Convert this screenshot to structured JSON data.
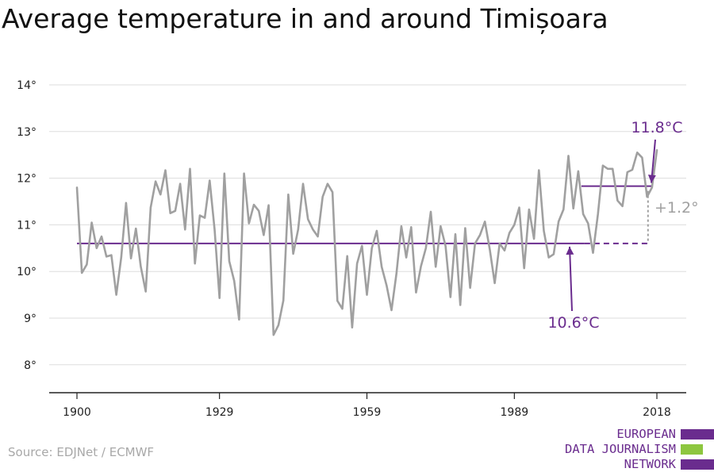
{
  "title": "Average temperature in and around Timișoara",
  "source": "Source: EDJNet / ECMWF",
  "logo": {
    "lines": [
      "EUROPEAN",
      "DATA JOURNALISM",
      "NETWORK"
    ],
    "colors": {
      "purple": "#6a2c8e",
      "green": "#8dc63f"
    }
  },
  "colors": {
    "series": "#a0a0a0",
    "baseline": "#6a2c8e",
    "recent": "#6a2c8e",
    "annotation_purple": "#6a2c8e",
    "annotation_grey": "#a0a0a0",
    "grid": "#dddddd",
    "axis": "#222222"
  },
  "chart_data": {
    "type": "line",
    "title": "Average temperature in and around Timișoara",
    "xlabel": "",
    "ylabel": "",
    "xlim": [
      1900,
      2018
    ],
    "ylim": [
      7.8,
      14
    ],
    "x_ticks": [
      1900,
      1929,
      1959,
      1989,
      2018
    ],
    "x_tick_labels": [
      "1900",
      "1929",
      "1959",
      "1989",
      "2018"
    ],
    "y_ticks": [
      8,
      9,
      10,
      11,
      12,
      13,
      14
    ],
    "y_tick_labels": [
      "8°",
      "9°",
      "10°",
      "11°",
      "12°",
      "13°",
      "14°"
    ],
    "grid": "horizontal",
    "series": [
      {
        "x": [
          1900,
          1901,
          1902,
          1903,
          1904,
          1905,
          1906,
          1907,
          1908,
          1909,
          1910,
          1911,
          1912,
          1913,
          1914,
          1915,
          1916,
          1917,
          1918,
          1919,
          1920,
          1921,
          1922,
          1923,
          1924,
          1925,
          1926,
          1927,
          1928,
          1929,
          1930,
          1931,
          1932,
          1933,
          1934,
          1935,
          1936,
          1937,
          1938,
          1939,
          1940,
          1941,
          1942,
          1943,
          1944,
          1945,
          1946,
          1947,
          1948,
          1949,
          1950,
          1951,
          1952,
          1953,
          1954,
          1955,
          1956,
          1957,
          1958,
          1959,
          1960,
          1961,
          1962,
          1963,
          1964,
          1965,
          1966,
          1967,
          1968,
          1969,
          1970,
          1971,
          1972,
          1973,
          1974,
          1975,
          1976,
          1977,
          1978,
          1979,
          1980,
          1981,
          1982,
          1983,
          1984,
          1985,
          1986,
          1987,
          1988,
          1989,
          1990,
          1991,
          1992,
          1993,
          1994,
          1995,
          1996,
          1997,
          1998,
          1999,
          2000,
          2001,
          2002,
          2003,
          2004,
          2005,
          2006,
          2007,
          2008,
          2009,
          2010,
          2011,
          2012,
          2013,
          2014,
          2015,
          2016,
          2017,
          2018
        ],
        "values": [
          11.8,
          9.97,
          10.15,
          11.05,
          10.5,
          10.75,
          10.32,
          10.35,
          9.5,
          10.3,
          11.47,
          10.28,
          10.92,
          10.1,
          9.57,
          11.37,
          11.93,
          11.65,
          12.17,
          11.25,
          11.3,
          11.88,
          10.9,
          12.2,
          10.17,
          11.2,
          11.15,
          11.95,
          10.9,
          9.43,
          12.1,
          10.22,
          9.8,
          8.97,
          12.1,
          11.03,
          11.43,
          11.3,
          10.78,
          11.42,
          8.64,
          8.85,
          9.38,
          11.65,
          10.38,
          10.9,
          11.88,
          11.12,
          10.9,
          10.75,
          11.6,
          11.88,
          11.7,
          9.37,
          9.2,
          10.33,
          8.8,
          10.17,
          10.55,
          9.5,
          10.5,
          10.87,
          10.1,
          9.7,
          9.17,
          9.95,
          10.97,
          10.3,
          10.95,
          9.55,
          10.11,
          10.5,
          11.28,
          10.1,
          10.97,
          10.55,
          9.45,
          10.8,
          9.28,
          10.93,
          9.65,
          10.6,
          10.78,
          11.07,
          10.47,
          9.75,
          10.6,
          10.45,
          10.83,
          11.0,
          11.37,
          10.07,
          11.33,
          10.7,
          12.17,
          10.87,
          10.3,
          10.37,
          11.07,
          11.33,
          12.48,
          11.35,
          12.15,
          11.23,
          11.03,
          10.4,
          11.23,
          12.27,
          12.2,
          12.2,
          11.52,
          11.4,
          12.13,
          12.18,
          12.55,
          12.44,
          11.6,
          11.8,
          12.6
        ],
        "color": "#a0a0a0"
      }
    ],
    "reference_lines": [
      {
        "value": 10.6,
        "x_from": 1900,
        "x_to": 2017,
        "style": "solid-then-dashed",
        "dash_from": 2002
      },
      {
        "value": 11.83,
        "x_from": 2002,
        "x_to": 2017,
        "style": "solid"
      }
    ],
    "annotations": [
      {
        "text": "11.8°C",
        "color": "#6a2c8e"
      },
      {
        "text": "10.6°C",
        "color": "#6a2c8e"
      },
      {
        "text": "+1.2°",
        "color": "#a0a0a0"
      }
    ]
  }
}
